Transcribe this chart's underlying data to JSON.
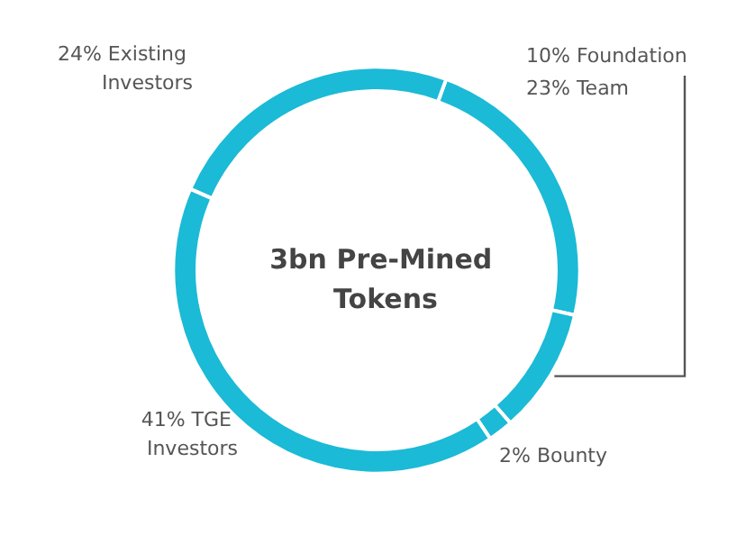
{
  "chart_data": {
    "type": "donut",
    "title": "3bn Pre-Mined Tokens",
    "categories": [
      "Team",
      "Foundation",
      "Bounty",
      "TGE Investors",
      "Existing Investors"
    ],
    "values": [
      23,
      10,
      2,
      41,
      24
    ],
    "colors": [
      "#1bbad6",
      "#1bbad6",
      "#1bbad6",
      "#1bbad6",
      "#1bbad6"
    ],
    "value_labels": [
      "23%",
      "10%",
      "2%",
      "41%",
      "24%"
    ],
    "legend": false
  }
}
